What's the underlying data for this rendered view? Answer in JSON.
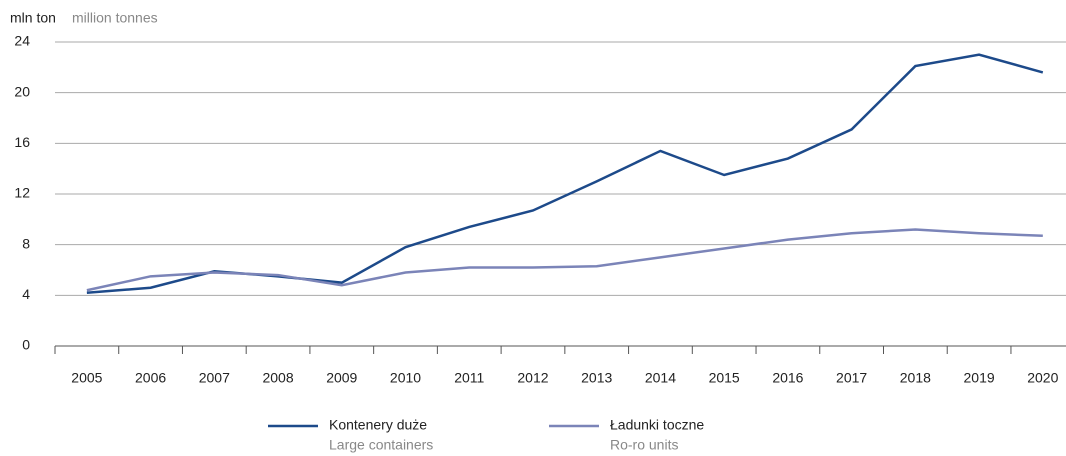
{
  "chart_data": {
    "type": "line",
    "unit_label": "mln ton",
    "unit_label_en": "million tonnes",
    "categories": [
      "2005",
      "2006",
      "2007",
      "2008",
      "2009",
      "2010",
      "2011",
      "2012",
      "2013",
      "2014",
      "2015",
      "2016",
      "2017",
      "2018",
      "2019",
      "2020"
    ],
    "series": [
      {
        "name": "Kontenery duże",
        "name_en": "Large containers",
        "color": "#1d4a8a",
        "values": [
          4.2,
          4.6,
          5.9,
          5.5,
          5.0,
          7.8,
          9.4,
          10.7,
          13.0,
          15.4,
          13.5,
          14.8,
          17.1,
          22.1,
          23.0,
          21.6
        ]
      },
      {
        "name": "Ładunki toczne",
        "name_en": "Ro-ro units",
        "color": "#7b84b8",
        "values": [
          4.4,
          5.5,
          5.8,
          5.6,
          4.8,
          5.8,
          6.2,
          6.2,
          6.3,
          7.0,
          7.7,
          8.4,
          8.9,
          9.2,
          8.9,
          8.7
        ]
      }
    ],
    "ylim": [
      0,
      24
    ],
    "yticks": [
      0,
      4,
      8,
      12,
      16,
      20,
      24
    ],
    "grid": true,
    "legend": "bottom"
  }
}
